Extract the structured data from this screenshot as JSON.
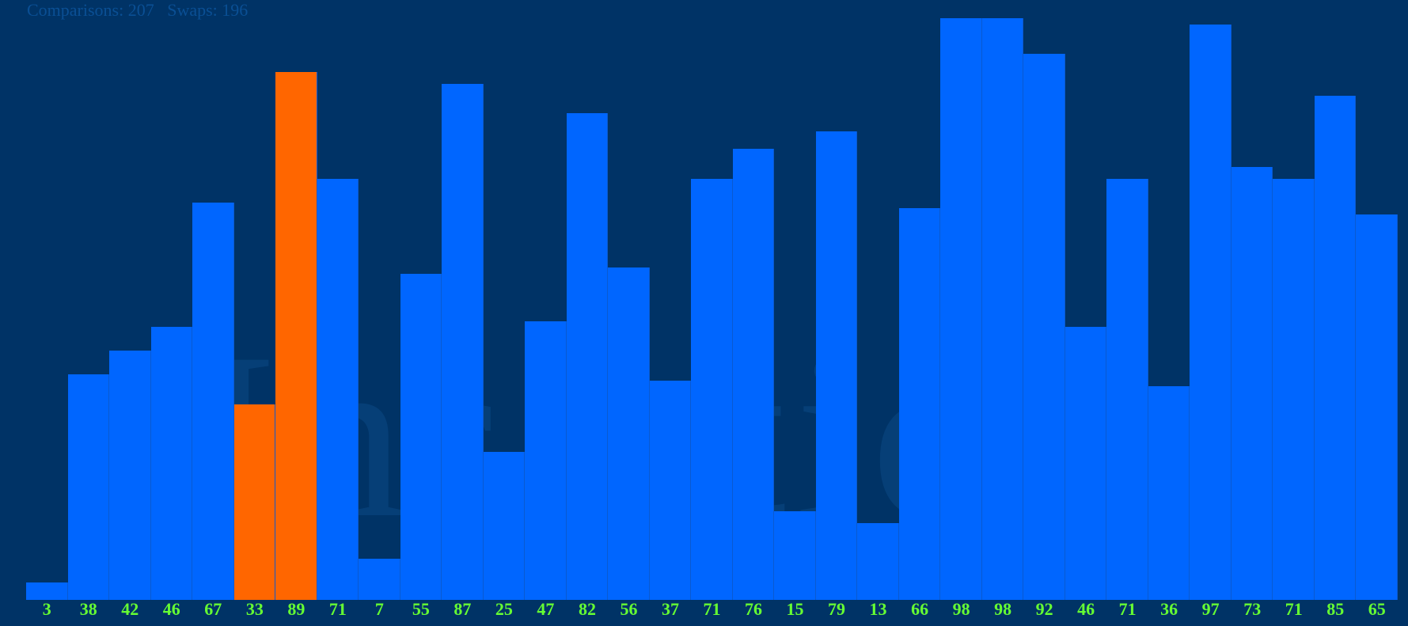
{
  "stats": {
    "comparisons_label": "Comparisons:",
    "comparisons_value": "207",
    "swaps_label": "Swaps:",
    "swaps_value": "196"
  },
  "watermark": "Insertion",
  "colors": {
    "background": "#003366",
    "bar_default": "#0066ff",
    "bar_active": "#ff6600",
    "label": "#66ff33"
  },
  "chart_data": {
    "type": "bar",
    "ylim": [
      0,
      100
    ],
    "values": [
      3,
      38,
      42,
      46,
      67,
      33,
      89,
      71,
      7,
      55,
      87,
      25,
      47,
      82,
      56,
      37,
      71,
      76,
      15,
      79,
      13,
      66,
      98,
      98,
      92,
      46,
      71,
      36,
      97,
      73,
      71,
      85,
      65
    ],
    "active_indices": [
      5,
      6
    ]
  }
}
